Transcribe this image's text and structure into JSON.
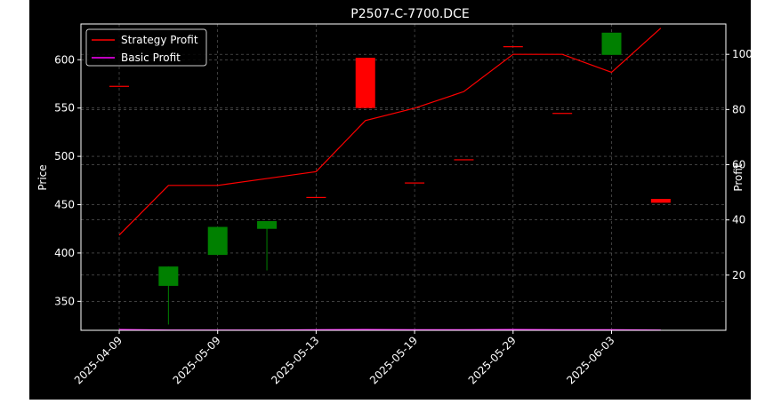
{
  "chart_data": {
    "type": "candlestick",
    "title": "P2507-C-7700.DCE",
    "xlabel": "",
    "ylabel_left": "Price",
    "ylabel_right": "Profit",
    "ylim_left": [
      320,
      637
    ],
    "ylim_right": [
      0,
      111
    ],
    "grid": true,
    "legend_position": "top-left",
    "legend": [
      {
        "label": "Strategy Profit",
        "color": "#ff0000"
      },
      {
        "label": "Basic Profit",
        "color": "#ff00ff"
      }
    ],
    "x_tick_labels": [
      {
        "index": 0,
        "label": "2025-04-09"
      },
      {
        "index": 2,
        "label": "2025-05-09"
      },
      {
        "index": 4,
        "label": "2025-05-13"
      },
      {
        "index": 6,
        "label": "2025-05-19"
      },
      {
        "index": 8,
        "label": "2025-05-29"
      },
      {
        "index": 10,
        "label": "2025-06-03"
      }
    ],
    "y_left_ticks": [
      350,
      400,
      450,
      500,
      550,
      600
    ],
    "y_right_ticks": [
      20,
      40,
      60,
      80,
      100
    ],
    "candles": [
      {
        "i": 0,
        "open": 573,
        "close": 573,
        "high": 573,
        "low": 573
      },
      {
        "i": 1,
        "open": 366,
        "close": 386,
        "high": 386,
        "low": 326
      },
      {
        "i": 2,
        "open": 398,
        "close": 427,
        "high": 427,
        "low": 398
      },
      {
        "i": 3,
        "open": 425,
        "close": 433,
        "high": 433,
        "low": 382
      },
      {
        "i": 4,
        "open": 458,
        "close": 458,
        "high": 458,
        "low": 458
      },
      {
        "i": 5,
        "open": 602,
        "close": 550,
        "high": 602,
        "low": 550
      },
      {
        "i": 6,
        "open": 473,
        "close": 473,
        "high": 473,
        "low": 473
      },
      {
        "i": 7,
        "open": 497,
        "close": 497,
        "high": 497,
        "low": 497
      },
      {
        "i": 8,
        "open": 614,
        "close": 614,
        "high": 614,
        "low": 614
      },
      {
        "i": 9,
        "open": 545,
        "close": 545,
        "high": 545,
        "low": 545
      },
      {
        "i": 10,
        "open": 605,
        "close": 628,
        "high": 628,
        "low": 605
      },
      {
        "i": 11,
        "open": 456,
        "close": 452,
        "high": 456,
        "low": 452
      }
    ],
    "series": [
      {
        "name": "Strategy Profit",
        "axis": "right",
        "color": "#ff0000",
        "values": [
          34.5,
          52.5,
          52.5,
          55,
          57.5,
          76,
          80.5,
          86.5,
          100,
          100,
          93.5,
          109.5
        ]
      },
      {
        "name": "Basic Profit",
        "axis": "right",
        "color": "#ff00ff",
        "values": [
          0.3,
          0.1,
          0.1,
          0.1,
          0.2,
          0.3,
          0.2,
          0.2,
          0.3,
          0.2,
          0.2,
          0.1
        ]
      }
    ],
    "colors": {
      "up": "#008000",
      "down": "#ff0000",
      "background": "#000000",
      "text": "#ffffff",
      "grid": "#808080"
    }
  }
}
